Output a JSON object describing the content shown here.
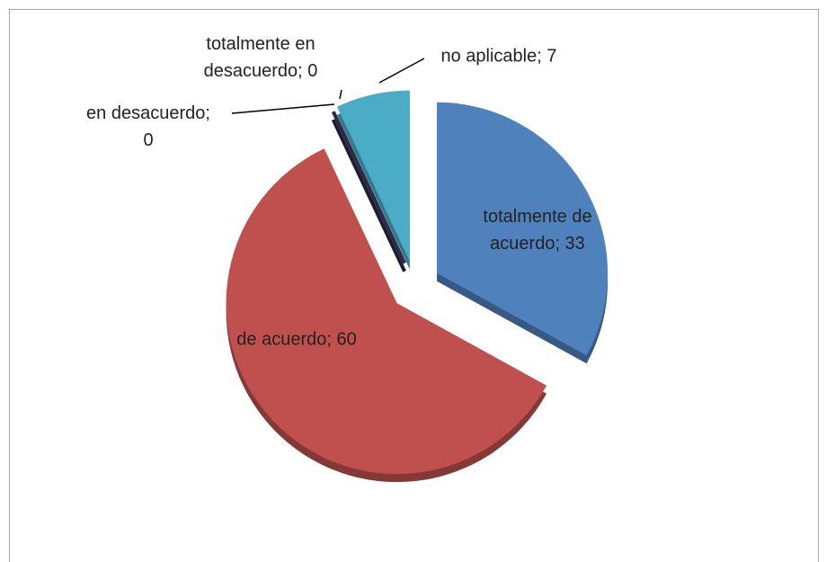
{
  "chart_data": {
    "type": "pie",
    "categories": [
      "totalmente de acuerdo",
      "de acuerdo",
      "en desacuerdo",
      "totalmente en desacuerdo",
      "no aplicable"
    ],
    "values": [
      33,
      60,
      0,
      0,
      7
    ],
    "value_labels": [
      "totalmente de acuerdo; 33",
      "de acuerdo; 60",
      "en desacuerdo; 0",
      "totalmente en desacuerdo; 0",
      "no aplicable; 7"
    ],
    "colors": [
      "#4f81bd",
      "#c0504d",
      "#9bbb59",
      "#2c2a4a",
      "#4bacc6"
    ]
  }
}
